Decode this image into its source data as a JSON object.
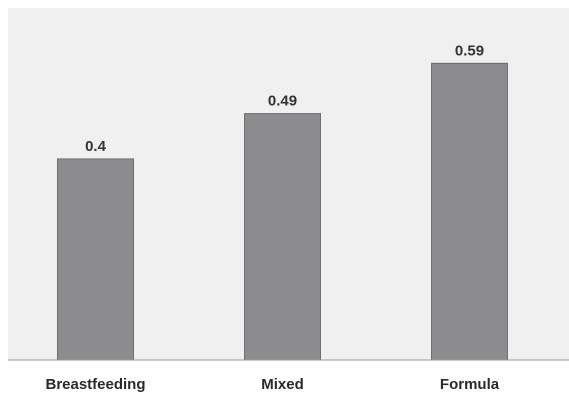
{
  "chart_data": {
    "type": "bar",
    "title": "",
    "xlabel": "",
    "ylabel": "",
    "categories": [
      "Breastfeeding",
      "Mixed",
      "Formula"
    ],
    "values": [
      0.4,
      0.49,
      0.59
    ],
    "value_labels": [
      "0.4",
      "0.49",
      "0.59"
    ],
    "ylim": [
      0,
      0.7
    ],
    "grid": false,
    "legend": "none",
    "colors": {
      "bar": "#8c8c8e",
      "bar_edge": "#6f6f71",
      "plot_background": "#f0f0f0",
      "axis": "#9a9a9a",
      "text": "#333333"
    }
  }
}
